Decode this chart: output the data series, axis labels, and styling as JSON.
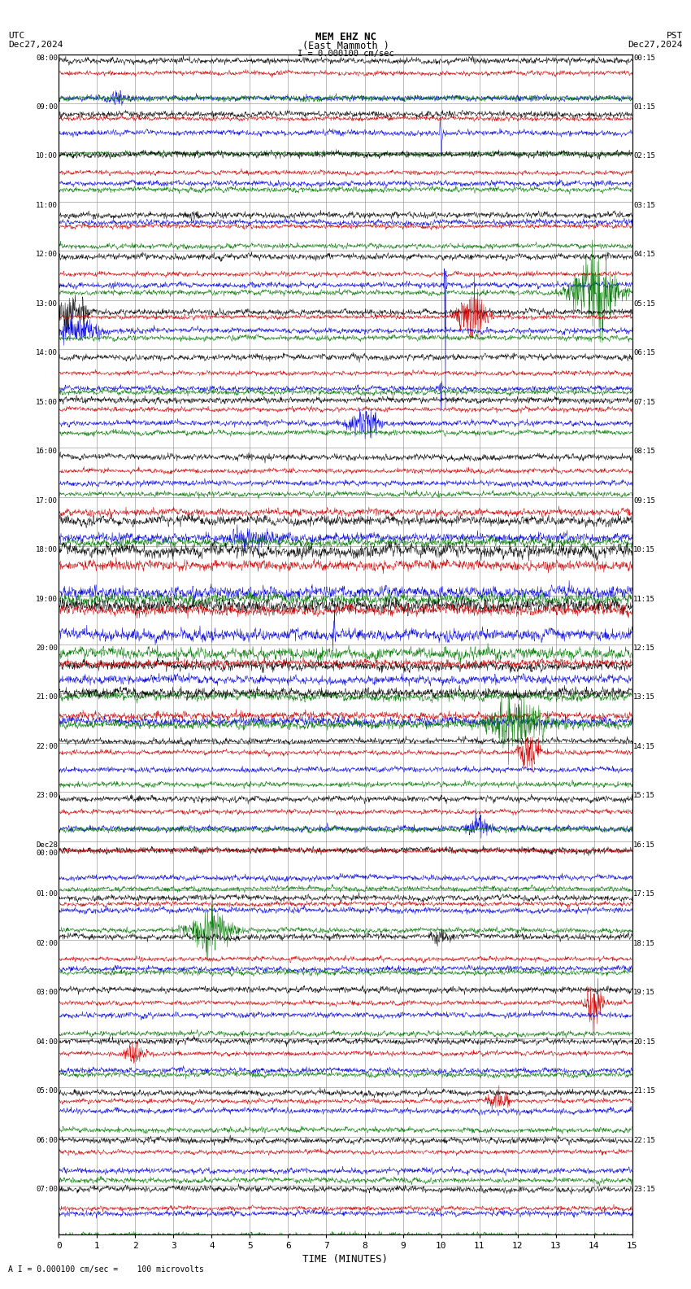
{
  "title_line1": "MEM EHZ NC",
  "title_line2": "(East Mammoth )",
  "scale_label": "I = 0.000100 cm/sec",
  "utc_label1": "UTC",
  "utc_label2": "Dec27,2024",
  "pst_label1": "PST",
  "pst_label2": "Dec27,2024",
  "bottom_label": "A I = 0.000100 cm/sec =    100 microvolts",
  "xlabel": "TIME (MINUTES)",
  "bg_color": "#ffffff",
  "line_colors": [
    "#000000",
    "#cc0000",
    "#0000dd",
    "#007700"
  ],
  "figsize": [
    8.5,
    15.84
  ],
  "dpi": 100,
  "left_labels": [
    "08:00",
    "09:00",
    "10:00",
    "11:00",
    "12:00",
    "13:00",
    "14:00",
    "15:00",
    "16:00",
    "17:00",
    "18:00",
    "19:00",
    "20:00",
    "21:00",
    "22:00",
    "23:00",
    "Dec28\n00:00",
    "01:00",
    "02:00",
    "03:00",
    "04:00",
    "05:00",
    "06:00",
    "07:00"
  ],
  "right_labels": [
    "00:15",
    "01:15",
    "02:15",
    "03:15",
    "04:15",
    "05:15",
    "06:15",
    "07:15",
    "08:15",
    "09:15",
    "10:15",
    "11:15",
    "12:15",
    "13:15",
    "14:15",
    "15:15",
    "16:15",
    "17:15",
    "18:15",
    "19:15",
    "20:15",
    "21:15",
    "22:15",
    "23:15"
  ],
  "num_rows": 24,
  "n_per_row": 4,
  "noise_seed": 12345
}
